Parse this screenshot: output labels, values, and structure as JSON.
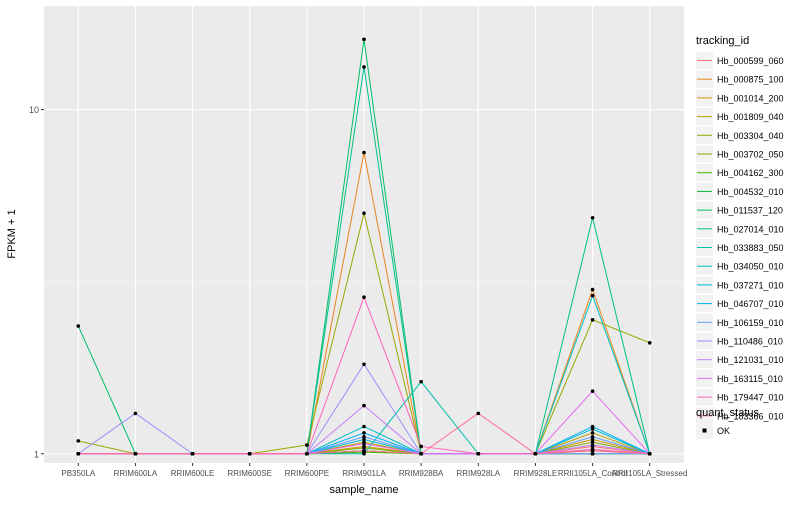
{
  "chart_data": {
    "type": "line",
    "title": "",
    "xlabel": "sample_name",
    "ylabel": "FPKM + 1",
    "y_scale": "log10",
    "ylim": [
      0.94,
      20
    ],
    "y_ticks": [
      1,
      10
    ],
    "y_tick_labels": [
      "1",
      "10"
    ],
    "grid": true,
    "legend_position": "right",
    "categories": [
      "PB350LA",
      "RRIM600LA",
      "RRIM600LE",
      "RRIM600SE",
      "RRIM600PE",
      "RRIM901LA",
      "RRIM928BA",
      "RRIM928LA",
      "RRIM928LE",
      "RRII105LA_Control",
      "RRII105LA_Stressed"
    ],
    "x_tick_labels": [
      "PB350LA",
      "RRIM600LA",
      "RRIM600LE",
      "RRIM600SE",
      "RRIM600PE",
      "RRIM901LA",
      "RRIM928BA",
      "RRIM928LA",
      "RRIM928LE",
      "RRII105LA_Control",
      "RRII105LA_Stressed"
    ],
    "series": [
      {
        "name": "Hb_000599_060",
        "color": "#F8766D",
        "values": [
          1,
          1,
          1,
          1,
          1,
          1.02,
          1,
          1,
          1,
          1.05,
          1
        ]
      },
      {
        "name": "Hb_000875_100",
        "color": "#E7861B",
        "values": [
          1,
          1,
          1,
          1,
          1,
          7.5,
          1,
          1,
          1,
          3.0,
          1
        ]
      },
      {
        "name": "Hb_001014_200",
        "color": "#D39200",
        "values": [
          1,
          1,
          1,
          1,
          1,
          1.05,
          1,
          1,
          1,
          1.1,
          1
        ]
      },
      {
        "name": "Hb_001809_040",
        "color": "#BB9D00",
        "values": [
          1,
          1,
          1,
          1,
          1,
          1.08,
          1,
          1,
          1,
          1.15,
          1
        ]
      },
      {
        "name": "Hb_003304_040",
        "color": "#9CA700",
        "values": [
          1.09,
          1,
          1,
          1,
          1.06,
          5.0,
          1,
          1,
          1,
          2.45,
          2.1
        ]
      },
      {
        "name": "Hb_003702_050",
        "color": "#7CAE00",
        "values": [
          1,
          1,
          1,
          1,
          1,
          1.04,
          1,
          1,
          1,
          1.08,
          1
        ]
      },
      {
        "name": "Hb_004162_300",
        "color": "#49B500",
        "values": [
          1,
          1,
          1,
          1,
          1,
          1.01,
          1,
          1,
          1,
          1.02,
          1
        ]
      },
      {
        "name": "Hb_004532_010",
        "color": "#00BA38",
        "values": [
          1,
          1,
          1,
          1,
          1,
          1.02,
          1,
          1,
          1,
          1.0,
          1
        ]
      },
      {
        "name": "Hb_011537_120",
        "color": "#00BE67",
        "values": [
          2.35,
          1,
          1,
          1,
          1,
          16.0,
          1,
          1,
          1,
          1.0,
          1
        ]
      },
      {
        "name": "Hb_027014_010",
        "color": "#00C08B",
        "values": [
          1,
          1,
          1,
          1,
          1,
          13.3,
          1,
          1,
          1,
          4.85,
          1
        ]
      },
      {
        "name": "Hb_033883_050",
        "color": "#00C1A9",
        "values": [
          1,
          1,
          1,
          1,
          1,
          1.0,
          1.62,
          1,
          1,
          1.0,
          1
        ]
      },
      {
        "name": "Hb_034050_010",
        "color": "#00BFC4",
        "values": [
          1,
          1,
          1,
          1,
          1,
          1.2,
          1,
          1,
          1,
          2.88,
          1
        ]
      },
      {
        "name": "Hb_037271_010",
        "color": "#00BBDA",
        "values": [
          1,
          1,
          1,
          1,
          1,
          1.1,
          1,
          1,
          1,
          1.18,
          1
        ]
      },
      {
        "name": "Hb_046707_010",
        "color": "#00B0F6",
        "values": [
          1,
          1,
          1,
          1,
          1,
          1.15,
          1,
          1,
          1,
          1.2,
          1
        ]
      },
      {
        "name": "Hb_106159_010",
        "color": "#619CFF",
        "values": [
          1,
          1,
          1,
          1,
          1,
          1.12,
          1,
          1,
          1,
          1.12,
          1
        ]
      },
      {
        "name": "Hb_110486_010",
        "color": "#9590FF",
        "values": [
          1,
          1.31,
          1,
          1,
          1,
          1.82,
          1,
          1,
          1,
          1.0,
          1
        ]
      },
      {
        "name": "Hb_121031_010",
        "color": "#C77CFF",
        "values": [
          1,
          1,
          1,
          1,
          1,
          1.38,
          1,
          1,
          1,
          1.06,
          1
        ]
      },
      {
        "name": "Hb_163115_010",
        "color": "#E76BF3",
        "values": [
          1,
          1,
          1,
          1,
          1,
          1.07,
          1,
          1,
          1,
          1.52,
          1
        ]
      },
      {
        "name": "Hb_179447_010",
        "color": "#FF62BC",
        "values": [
          1,
          1,
          1,
          1,
          1,
          2.85,
          1.05,
          1,
          1,
          1.03,
          1
        ]
      },
      {
        "name": "Hb_183366_010",
        "color": "#FF6C91",
        "values": [
          1,
          1,
          1,
          1,
          1,
          1.02,
          1,
          1.31,
          1,
          1.02,
          1
        ]
      }
    ],
    "legend_title": "tracking_id",
    "shape_legend": {
      "title": "quant_status",
      "items": [
        "OK"
      ]
    }
  }
}
